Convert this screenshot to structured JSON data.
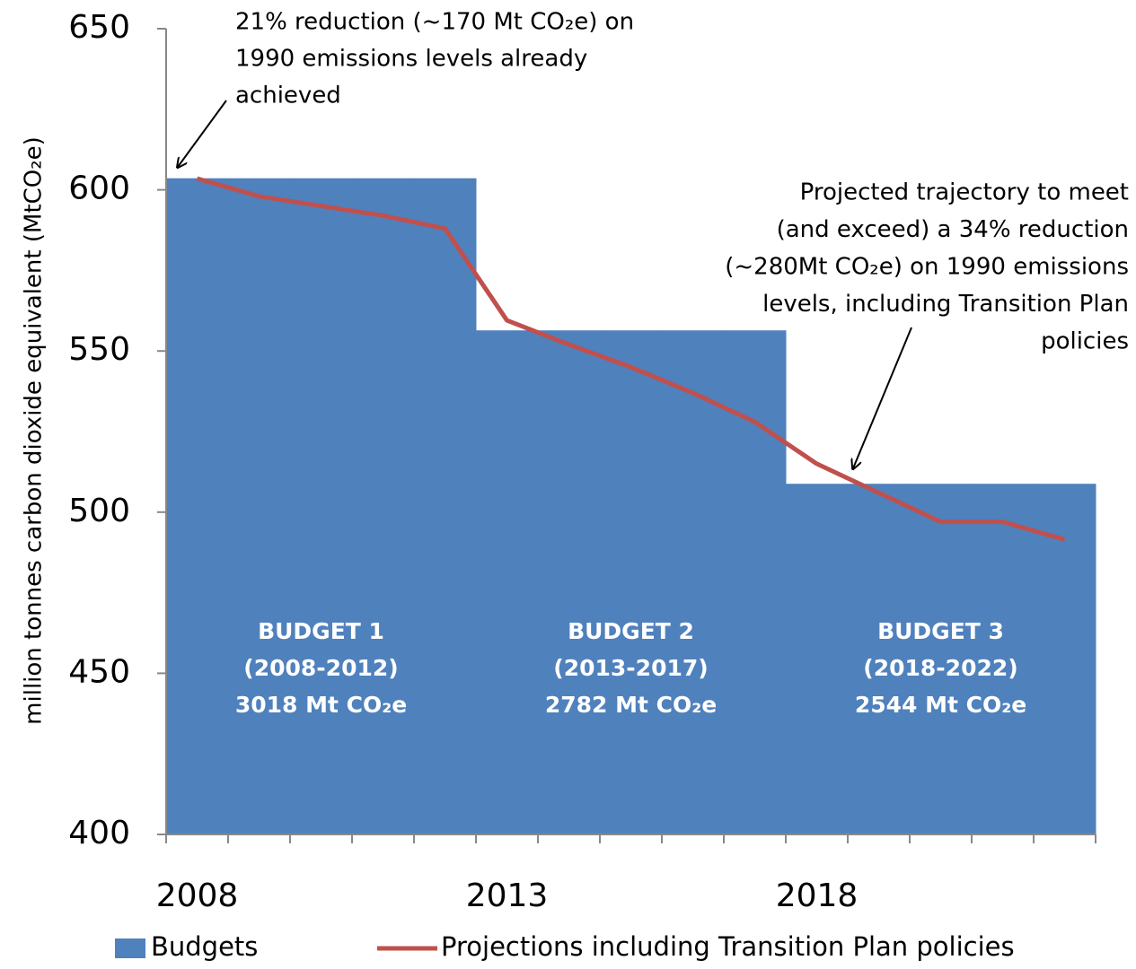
{
  "chart_data": {
    "type": "bar",
    "ylabel": "million tonnes carbon dioxide equivalent  (MtCO₂e)",
    "categories": [
      "2008",
      null,
      null,
      null,
      null,
      "2013",
      null,
      null,
      null,
      null,
      "2018",
      null,
      null,
      null,
      null
    ],
    "series": [
      {
        "name": "Budgets",
        "type": "bar",
        "color": "#4f81bd",
        "values": [
          603.6,
          603.6,
          603.6,
          603.6,
          603.6,
          556.4,
          556.4,
          556.4,
          556.4,
          556.4,
          508.8,
          508.8,
          508.8,
          508.8,
          508.8
        ]
      },
      {
        "name": "Projections including Transition Plan policies",
        "type": "line",
        "color": "#c0504d",
        "values": [
          603.5,
          598,
          595,
          592,
          588,
          559.5,
          552,
          545,
          537,
          528,
          515,
          506,
          497,
          497,
          491.5
        ]
      }
    ],
    "ylim": [
      400,
      650
    ],
    "yticks": [
      400,
      450,
      500,
      550,
      600,
      650
    ],
    "budget_labels": [
      [
        "BUDGET 1",
        "(2008-2012)",
        "3018 Mt CO₂e"
      ],
      [
        "BUDGET 2",
        "(2013-2017)",
        "2782 Mt CO₂e"
      ],
      [
        "BUDGET 3",
        "(2018-2022)",
        "2544 Mt CO₂e"
      ]
    ],
    "annotations": [
      [
        "21% reduction (~170 Mt CO₂e)  on",
        "1990 emissions levels already",
        "achieved"
      ],
      [
        "Projected trajectory to meet",
        "(and exceed) a 34% reduction",
        "(~280Mt CO₂e) on 1990 emissions",
        "levels, including Transition Plan",
        "policies"
      ]
    ]
  }
}
